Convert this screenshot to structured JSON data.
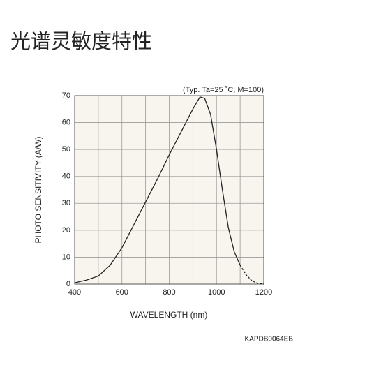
{
  "page_title": "光谱灵敏度特性",
  "chart_data": {
    "type": "line",
    "annotation": "(Typ. Ta=25 ˚C, M=100)",
    "xlabel": "WAVELENGTH (nm)",
    "ylabel": "PHOTO SENSITIVITY (A/W)",
    "footnote": "KAPDB0064EB",
    "x": [
      400,
      450,
      500,
      550,
      600,
      650,
      700,
      750,
      800,
      850,
      900,
      930,
      950,
      975,
      1000,
      1025,
      1050,
      1075,
      1100,
      1125,
      1150,
      1175,
      1200
    ],
    "series": [
      {
        "color": "#222222",
        "dashed": false,
        "values": [
          0.5,
          1.5,
          3,
          7,
          13.5,
          22,
          30.5,
          39,
          48,
          56.5,
          65,
          69.5,
          69,
          63,
          50,
          35,
          21,
          12,
          7,
          null,
          null,
          null,
          null
        ]
      },
      {
        "color": "#222222",
        "dashed": true,
        "values": [
          null,
          null,
          null,
          null,
          null,
          null,
          null,
          null,
          null,
          null,
          null,
          null,
          null,
          null,
          null,
          null,
          null,
          null,
          7,
          3.5,
          1.2,
          0.3,
          0
        ]
      }
    ],
    "xlim": [
      400,
      1200
    ],
    "xticks": [
      400,
      600,
      800,
      1000,
      1200
    ],
    "xgrid": [
      400,
      500,
      600,
      700,
      800,
      900,
      1000,
      1100,
      1200
    ],
    "ylim": [
      0,
      70
    ],
    "yticks": [
      0,
      10,
      20,
      30,
      40,
      50,
      60,
      70
    ],
    "grid": true,
    "background": "#f7f5ee"
  }
}
